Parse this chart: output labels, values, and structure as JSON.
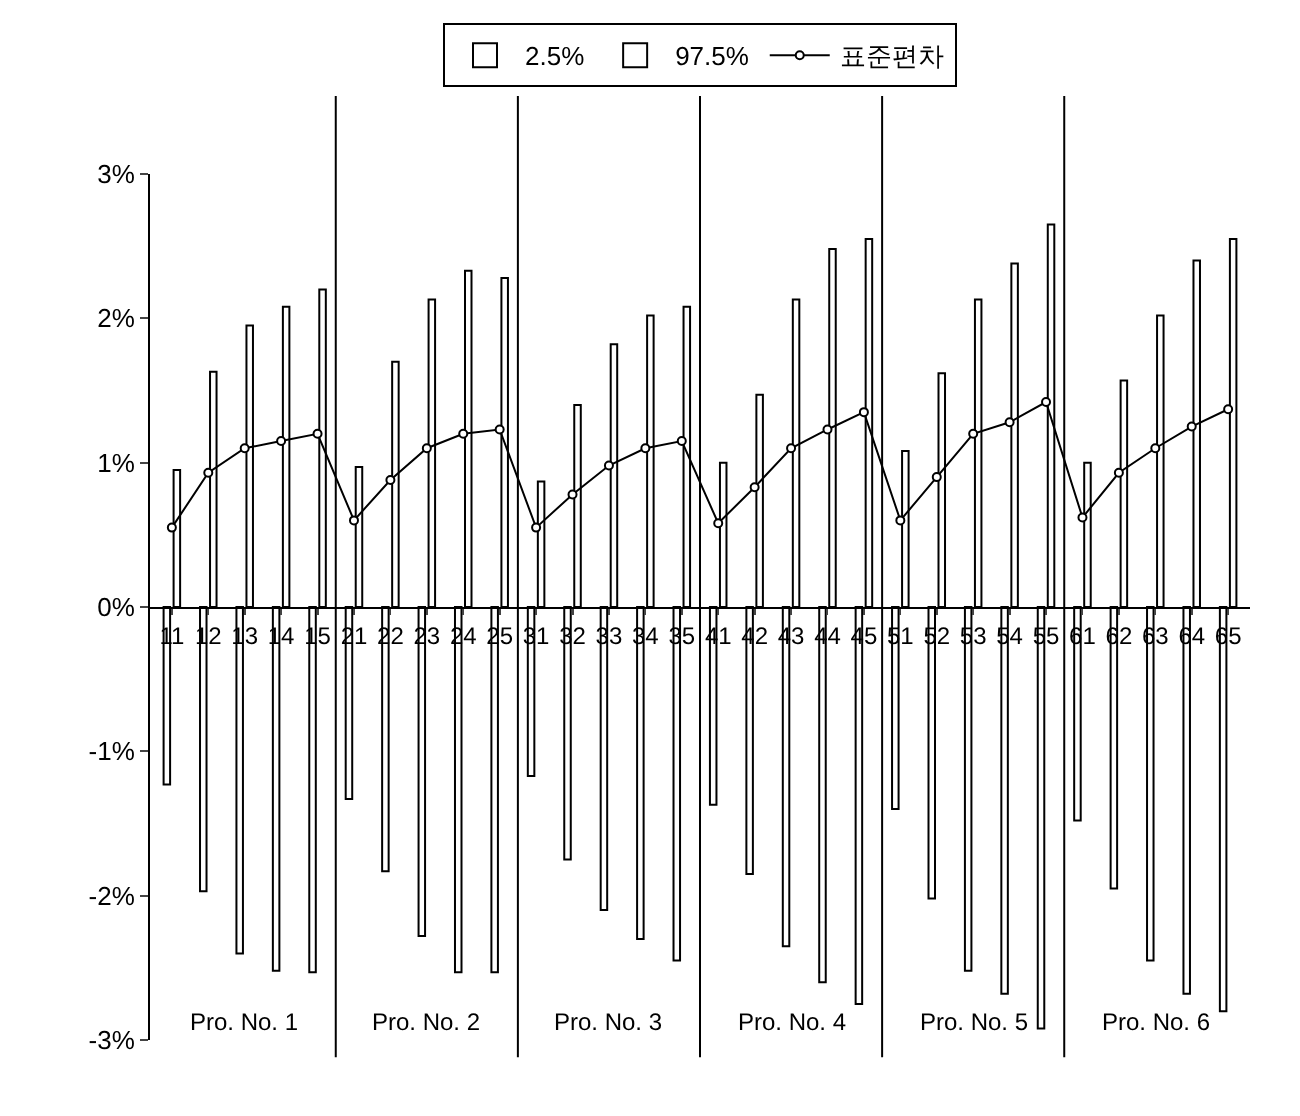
{
  "chart_data": {
    "type": "bar",
    "categories": [
      "11",
      "12",
      "13",
      "14",
      "15",
      "21",
      "22",
      "23",
      "24",
      "25",
      "31",
      "32",
      "33",
      "34",
      "35",
      "41",
      "42",
      "43",
      "44",
      "45",
      "51",
      "52",
      "53",
      "54",
      "55",
      "61",
      "62",
      "63",
      "64",
      "65"
    ],
    "series": [
      {
        "name": "2.5%",
        "color": "#ffffff",
        "values": [
          -1.23,
          -1.97,
          -2.4,
          -2.52,
          -2.53,
          -1.33,
          -1.83,
          -2.28,
          -2.53,
          -2.53,
          -1.17,
          -1.75,
          -2.1,
          -2.3,
          -2.45,
          -1.37,
          -1.85,
          -2.35,
          -2.6,
          -2.75,
          -1.4,
          -2.02,
          -2.52,
          -2.68,
          -2.92,
          -1.48,
          -1.95,
          -2.45,
          -2.68,
          -2.8
        ]
      },
      {
        "name": "97.5%",
        "color": "#ffffff",
        "values": [
          0.95,
          1.63,
          1.95,
          2.08,
          2.2,
          0.97,
          1.7,
          2.13,
          2.33,
          2.28,
          0.87,
          1.4,
          1.82,
          2.02,
          2.08,
          1.0,
          1.47,
          2.13,
          2.48,
          2.55,
          1.08,
          1.62,
          2.13,
          2.38,
          2.65,
          1.0,
          1.57,
          2.02,
          2.4,
          2.55
        ]
      },
      {
        "name": "표준편차",
        "type": "line",
        "color": "#000000",
        "values": [
          0.55,
          0.93,
          1.1,
          1.15,
          1.2,
          0.6,
          0.88,
          1.1,
          1.2,
          1.23,
          0.55,
          0.78,
          0.98,
          1.1,
          1.15,
          0.58,
          0.83,
          1.1,
          1.23,
          1.35,
          0.6,
          0.9,
          1.2,
          1.28,
          1.42,
          0.62,
          0.93,
          1.1,
          1.25,
          1.37
        ]
      }
    ],
    "ylim": [
      -3,
      3
    ],
    "yticks": [
      {
        "value": -3,
        "label": "-3%"
      },
      {
        "value": -2,
        "label": "-2%"
      },
      {
        "value": -1,
        "label": "-1%"
      },
      {
        "value": 0,
        "label": "0%"
      },
      {
        "value": 1,
        "label": "1%"
      },
      {
        "value": 2,
        "label": "2%"
      },
      {
        "value": 3,
        "label": "3%"
      }
    ],
    "annotations": [
      "Pro. No. 1",
      "Pro. No. 2",
      "Pro. No. 3",
      "Pro. No. 4",
      "Pro. No. 5",
      "Pro. No. 6"
    ],
    "legend": "top",
    "marker": "circle",
    "line_style": "solid"
  }
}
